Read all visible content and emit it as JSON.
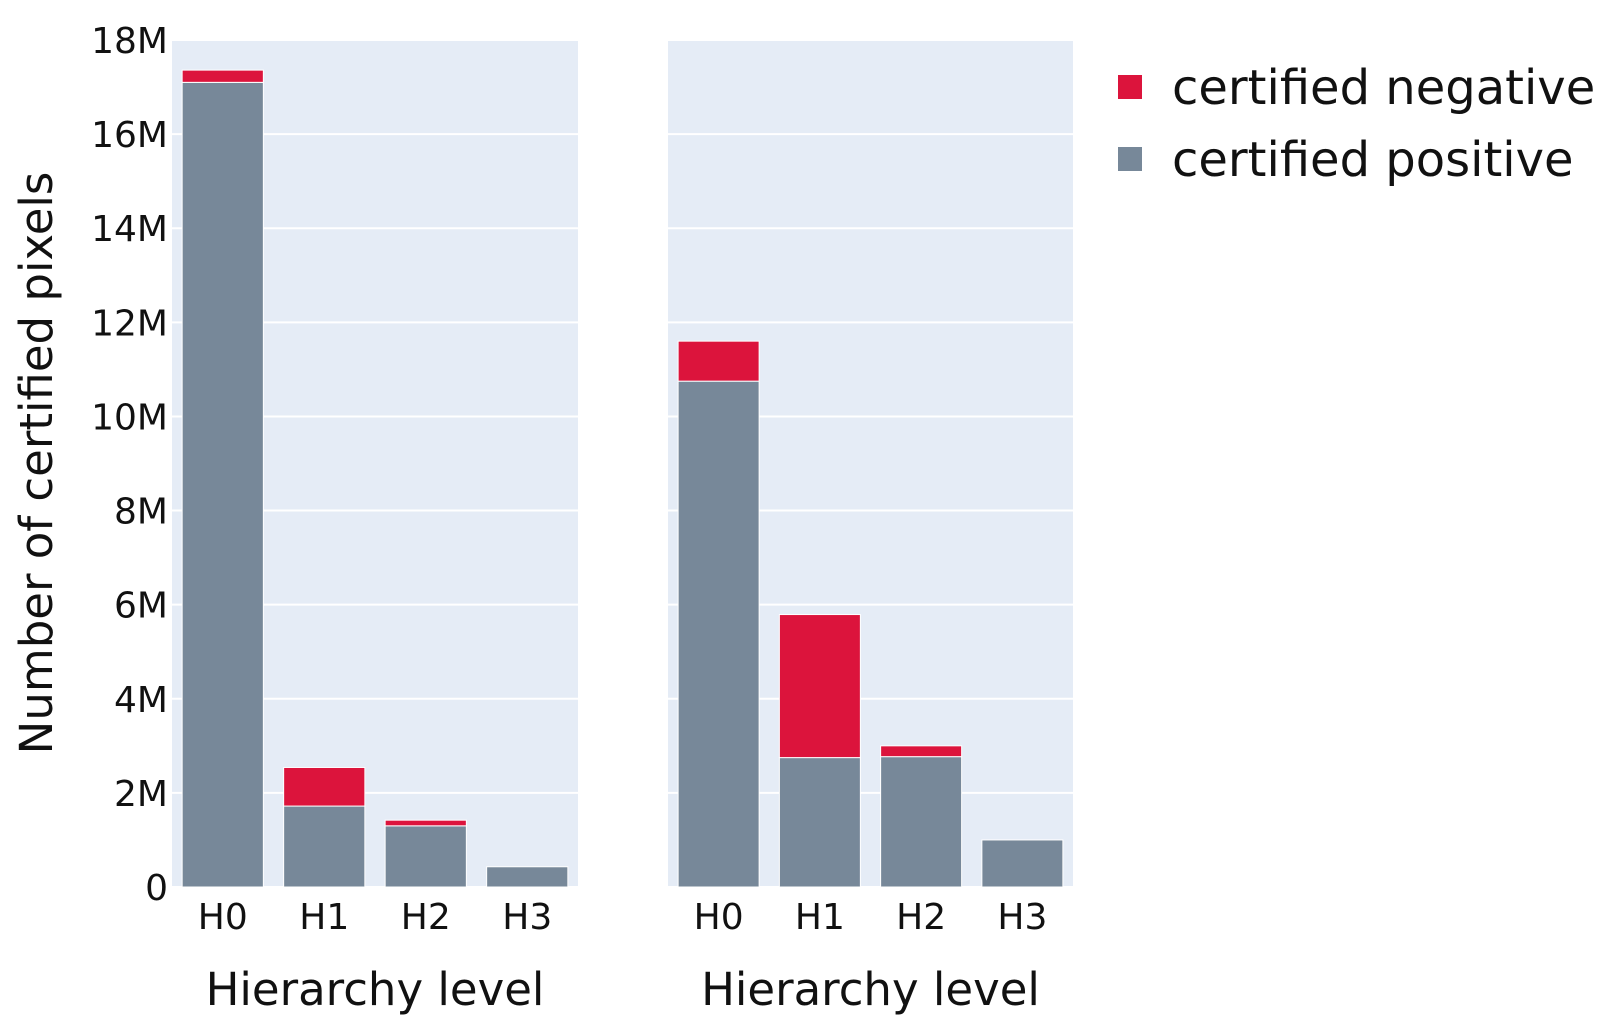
{
  "chart_data": {
    "type": "bar",
    "stacked": true,
    "ylabel": "Number of certified pixels",
    "ylim": [
      0,
      18000000
    ],
    "yticks": [
      0,
      2000000,
      4000000,
      6000000,
      8000000,
      10000000,
      12000000,
      14000000,
      16000000,
      18000000
    ],
    "ytick_labels": [
      "0",
      "2M",
      "4M",
      "6M",
      "8M",
      "10M",
      "12M",
      "14M",
      "16M",
      "18M"
    ],
    "grid": true,
    "legend_position": "top-right",
    "colors": {
      "certified negative": "#DC143C",
      "certified positive": "#778899",
      "plot_bg": "#E5ECF6"
    },
    "legend": [
      {
        "name": "certified negative",
        "color": "#DC143C"
      },
      {
        "name": "certified positive",
        "color": "#778899"
      }
    ],
    "panels": [
      {
        "xlabel": "Hierarchy level",
        "categories": [
          "H0",
          "H1",
          "H2",
          "H3"
        ],
        "series": [
          {
            "name": "certified positive",
            "values": [
              17100000,
              1720000,
              1300000,
              430000
            ]
          },
          {
            "name": "certified negative",
            "values": [
              260000,
              820000,
              120000,
              0
            ]
          }
        ]
      },
      {
        "xlabel": "Hierarchy level",
        "categories": [
          "H0",
          "H1",
          "H2",
          "H3"
        ],
        "series": [
          {
            "name": "certified positive",
            "values": [
              10750000,
              2750000,
              2770000,
              1000000
            ]
          },
          {
            "name": "certified negative",
            "values": [
              850000,
              3040000,
              230000,
              0
            ]
          }
        ]
      }
    ]
  }
}
